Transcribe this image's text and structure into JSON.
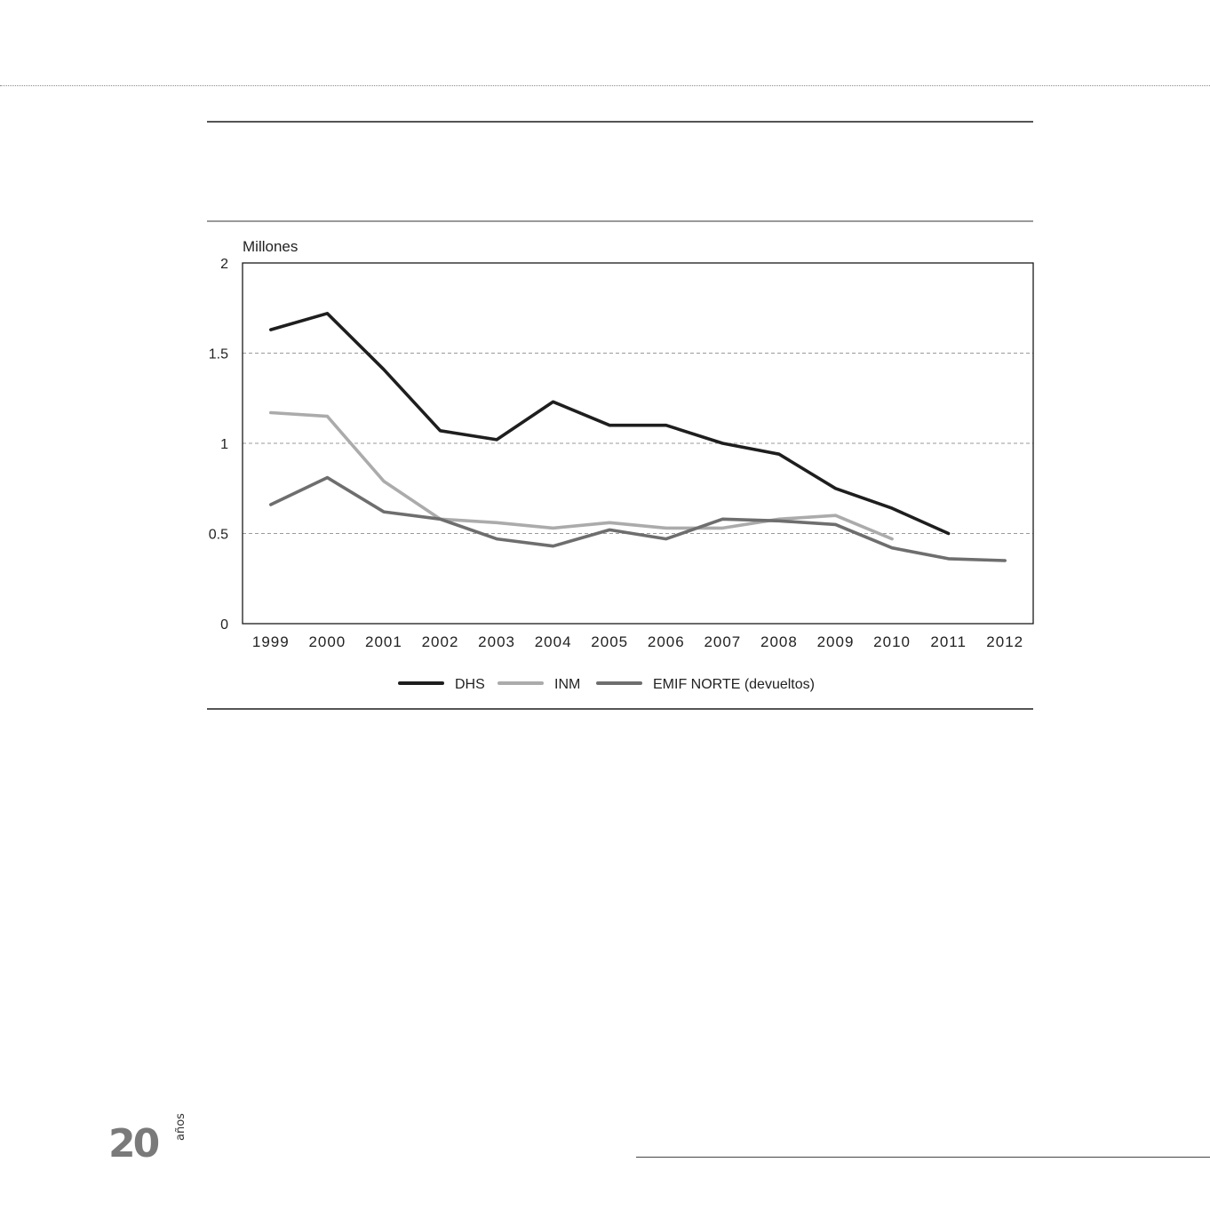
{
  "chart_data": {
    "type": "line",
    "title": "",
    "xlabel": "",
    "ylabel": "Millones",
    "x": [
      "1999",
      "2000",
      "2001",
      "2002",
      "2003",
      "2004",
      "2005",
      "2006",
      "2007",
      "2008",
      "2009",
      "2010",
      "2011",
      "2012"
    ],
    "ylim": [
      0,
      2
    ],
    "yticks": [
      "0",
      "0.5",
      "1",
      "1.5",
      "2"
    ],
    "grid": "horizontal dashed at 0.5, 1, 1.5",
    "legend_position": "bottom-center",
    "series": [
      {
        "name": "DHS",
        "color": "#1e1e1e",
        "values": [
          1.63,
          1.72,
          1.41,
          1.07,
          1.02,
          1.23,
          1.1,
          1.1,
          1.0,
          0.94,
          0.75,
          0.64,
          0.5,
          null
        ]
      },
      {
        "name": "INM",
        "color": "#ababab",
        "values": [
          1.17,
          1.15,
          0.79,
          0.58,
          0.56,
          0.53,
          0.56,
          0.53,
          0.53,
          0.58,
          0.6,
          0.47,
          null,
          null
        ]
      },
      {
        "name": "EMIF NORTE (devueltos)",
        "color": "#6e6e6e",
        "values": [
          0.66,
          0.81,
          0.62,
          0.58,
          0.47,
          0.43,
          0.52,
          0.47,
          0.58,
          0.57,
          0.55,
          0.42,
          0.36,
          0.35
        ]
      }
    ]
  },
  "logo": {
    "number": "20",
    "word": "años"
  }
}
